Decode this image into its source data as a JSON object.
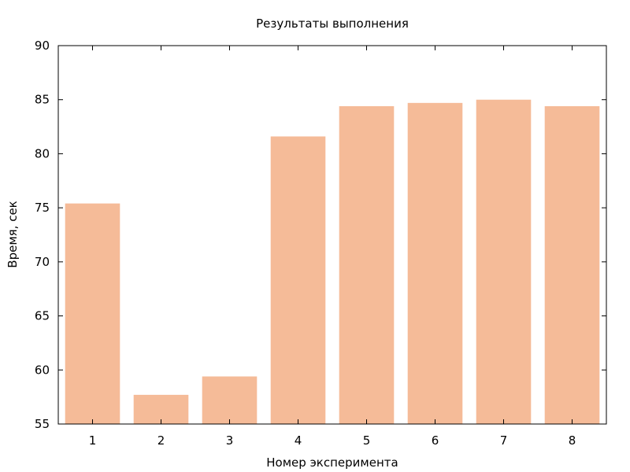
{
  "chart_data": {
    "type": "bar",
    "title": "Результаты выполнения",
    "xlabel": "Номер эксперимента",
    "ylabel": "Время, сек",
    "categories": [
      "1",
      "2",
      "3",
      "4",
      "5",
      "6",
      "7",
      "8"
    ],
    "values": [
      75.4,
      57.7,
      59.4,
      81.6,
      84.4,
      84.7,
      85.0,
      84.4
    ],
    "ylim": [
      55,
      90
    ],
    "yticks": [
      "55",
      "60",
      "65",
      "70",
      "75",
      "80",
      "85",
      "90"
    ],
    "grid": false,
    "legend": "none",
    "bar_color": "#f5bb98"
  }
}
